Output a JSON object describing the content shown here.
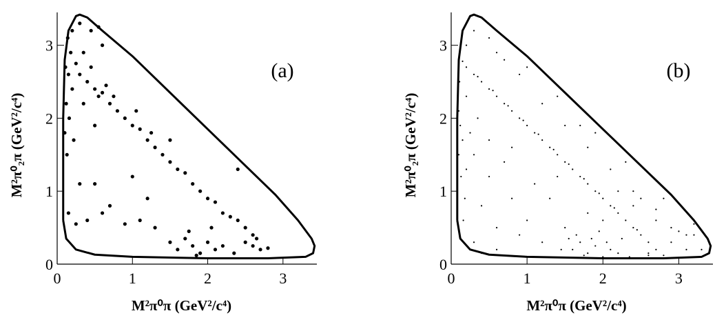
{
  "chart_data": [
    {
      "type": "scatter",
      "annotation": "(a)",
      "x_label": "M²π⁰π (GeV²/c⁴)",
      "y_label": "M²π⁰₂π (GeV²/c⁴)",
      "xlim": [
        0,
        3.45
      ],
      "ylim": [
        0,
        3.45
      ],
      "xticks": [
        0,
        1,
        2,
        3
      ],
      "yticks": [
        0,
        1,
        2,
        3
      ],
      "color": "#000000",
      "marker_size": 2.6,
      "x": [
        0.12,
        0.15,
        0.1,
        0.18,
        0.13,
        0.2,
        0.16,
        0.11,
        0.22,
        0.14,
        0.3,
        0.4,
        0.5,
        0.55,
        0.6,
        0.7,
        0.45,
        0.35,
        0.65,
        0.8,
        0.9,
        1.0,
        1.1,
        1.2,
        1.3,
        1.4,
        1.5,
        1.05,
        1.25,
        1.6,
        1.7,
        1.8,
        1.9,
        2.0,
        2.1,
        2.2,
        2.3,
        2.4,
        2.5,
        2.6,
        1.5,
        1.6,
        1.7,
        1.8,
        1.9,
        2.0,
        2.1,
        1.75,
        1.85,
        2.2,
        2.5,
        2.6,
        2.7,
        2.8,
        1.3,
        1.1,
        0.9,
        2.35,
        2.65,
        2.05,
        0.3,
        0.5,
        0.7,
        1.0,
        1.2,
        0.6,
        0.4,
        1.5,
        2.4,
        0.25,
        0.3,
        0.45,
        0.6,
        0.55,
        0.2,
        0.25,
        0.35,
        0.75,
        0.5,
        0.15
      ],
      "values": [
        2.2,
        2.6,
        1.8,
        2.9,
        1.5,
        2.4,
        2.0,
        2.7,
        1.7,
        3.1,
        2.6,
        2.5,
        2.4,
        2.3,
        2.35,
        2.2,
        2.7,
        2.9,
        2.45,
        2.1,
        2.0,
        1.9,
        1.85,
        1.7,
        1.6,
        1.5,
        1.4,
        2.1,
        1.8,
        1.3,
        1.25,
        1.1,
        1.0,
        0.9,
        0.85,
        0.7,
        0.65,
        0.6,
        0.5,
        0.4,
        0.3,
        0.2,
        0.35,
        0.25,
        0.15,
        0.3,
        0.2,
        0.45,
        0.12,
        0.25,
        0.3,
        0.25,
        0.2,
        0.22,
        0.5,
        0.6,
        0.55,
        0.15,
        0.35,
        0.5,
        1.1,
        1.1,
        0.8,
        1.2,
        0.9,
        0.7,
        0.6,
        1.7,
        1.3,
        0.55,
        3.3,
        3.2,
        3.0,
        3.25,
        3.2,
        2.75,
        2.2,
        2.3,
        1.9,
        0.7
      ],
      "boundary_x": [
        0.08,
        0.08,
        0.1,
        0.15,
        0.25,
        0.3,
        0.4,
        0.6,
        1.0,
        1.5,
        2.0,
        2.5,
        2.9,
        3.2,
        3.38,
        3.42,
        3.4,
        3.3,
        2.8,
        2.0,
        1.0,
        0.5,
        0.25,
        0.12,
        0.08
      ],
      "boundary_y": [
        0.6,
        2.0,
        2.8,
        3.2,
        3.4,
        3.42,
        3.38,
        3.2,
        2.85,
        2.35,
        1.85,
        1.35,
        0.95,
        0.6,
        0.35,
        0.25,
        0.15,
        0.1,
        0.08,
        0.08,
        0.1,
        0.13,
        0.2,
        0.35,
        0.6
      ]
    },
    {
      "type": "scatter",
      "annotation": "(b)",
      "x_label": "M²π⁰π (GeV²/c⁴)",
      "y_label": "M²π⁰₂π (GeV²/c⁴)",
      "xlim": [
        0,
        3.45
      ],
      "ylim": [
        0,
        3.45
      ],
      "xticks": [
        0,
        1,
        2,
        3
      ],
      "yticks": [
        0,
        1,
        2,
        3
      ],
      "color": "#000000",
      "marker_size": 1.1,
      "x": [
        0.1,
        0.2,
        0.3,
        0.4,
        0.5,
        0.6,
        0.7,
        0.8,
        0.9,
        1.0,
        1.1,
        1.2,
        1.3,
        1.4,
        1.5,
        1.6,
        1.7,
        1.8,
        1.9,
        2.0,
        2.1,
        2.2,
        2.3,
        2.4,
        2.5,
        2.6,
        2.7,
        2.8,
        2.45,
        2.15,
        0.15,
        0.35,
        0.55,
        0.75,
        0.95,
        1.15,
        1.35,
        1.55,
        1.75,
        1.95,
        0.3,
        0.6,
        0.9,
        1.2,
        1.5,
        1.8,
        2.1,
        2.4,
        2.7,
        3.0,
        0.5,
        1.0,
        1.4,
        1.9,
        2.3,
        2.8,
        3.2,
        0.2,
        0.7,
        1.7,
        0.1,
        0.12,
        0.15,
        0.1,
        0.2,
        0.13,
        0.18,
        0.11,
        0.25,
        0.16,
        0.3,
        0.5,
        0.4,
        0.6,
        0.8,
        0.3,
        0.7,
        0.5,
        0.9,
        1.1,
        1.0,
        1.3,
        1.2,
        0.6,
        0.4,
        1.5,
        0.2,
        0.8,
        1.4,
        0.35,
        1.6,
        1.7,
        1.8,
        1.9,
        2.0,
        2.1,
        2.2,
        1.65,
        1.75,
        1.85,
        1.95,
        2.05,
        2.25,
        2.35,
        1.55,
        1.45,
        2.6,
        2.9,
        3.1,
        3.3,
        2.5,
        2.7,
        2.9,
        3.1,
        2.2,
        2.4,
        1.8,
        2.0,
        2.6,
        3.2
      ],
      "values": [
        2.8,
        2.7,
        2.6,
        2.5,
        2.4,
        2.3,
        2.2,
        2.1,
        2.0,
        1.9,
        1.8,
        1.7,
        1.6,
        1.5,
        1.4,
        1.3,
        1.2,
        1.1,
        1.0,
        0.9,
        0.8,
        0.7,
        0.6,
        0.5,
        0.4,
        0.3,
        0.2,
        0.12,
        0.47,
        0.77,
        2.78,
        2.57,
        2.38,
        2.17,
        1.97,
        1.78,
        1.57,
        1.37,
        1.17,
        0.97,
        3.2,
        2.9,
        2.6,
        2.2,
        1.9,
        1.6,
        1.3,
        1.0,
        0.75,
        0.45,
        3.1,
        2.7,
        2.3,
        1.8,
        1.4,
        0.9,
        0.4,
        3.0,
        2.8,
        1.9,
        2.1,
        1.9,
        1.7,
        1.5,
        2.3,
        1.2,
        0.9,
        2.5,
        1.8,
        0.6,
        1.5,
        1.2,
        0.8,
        0.5,
        0.9,
        0.3,
        1.4,
        1.7,
        0.4,
        1.1,
        0.6,
        0.9,
        0.3,
        0.2,
        0.15,
        0.5,
        1.3,
        1.6,
        1.2,
        2.0,
        0.2,
        0.3,
        0.15,
        0.25,
        0.1,
        0.2,
        0.15,
        0.4,
        0.12,
        0.35,
        0.45,
        0.3,
        0.35,
        0.1,
        0.35,
        0.2,
        0.12,
        0.3,
        0.2,
        0.2,
        0.9,
        0.6,
        0.5,
        0.4,
        1.0,
        0.8,
        0.7,
        0.6,
        0.15,
        0.55
      ],
      "boundary_x": [
        0.08,
        0.08,
        0.1,
        0.15,
        0.25,
        0.3,
        0.4,
        0.6,
        1.0,
        1.5,
        2.0,
        2.5,
        2.9,
        3.2,
        3.38,
        3.42,
        3.4,
        3.3,
        2.8,
        2.0,
        1.0,
        0.5,
        0.25,
        0.12,
        0.08
      ],
      "boundary_y": [
        0.6,
        2.0,
        2.8,
        3.2,
        3.4,
        3.42,
        3.38,
        3.2,
        2.85,
        2.35,
        1.85,
        1.35,
        0.95,
        0.6,
        0.35,
        0.25,
        0.15,
        0.1,
        0.08,
        0.08,
        0.1,
        0.13,
        0.2,
        0.35,
        0.6
      ]
    }
  ]
}
